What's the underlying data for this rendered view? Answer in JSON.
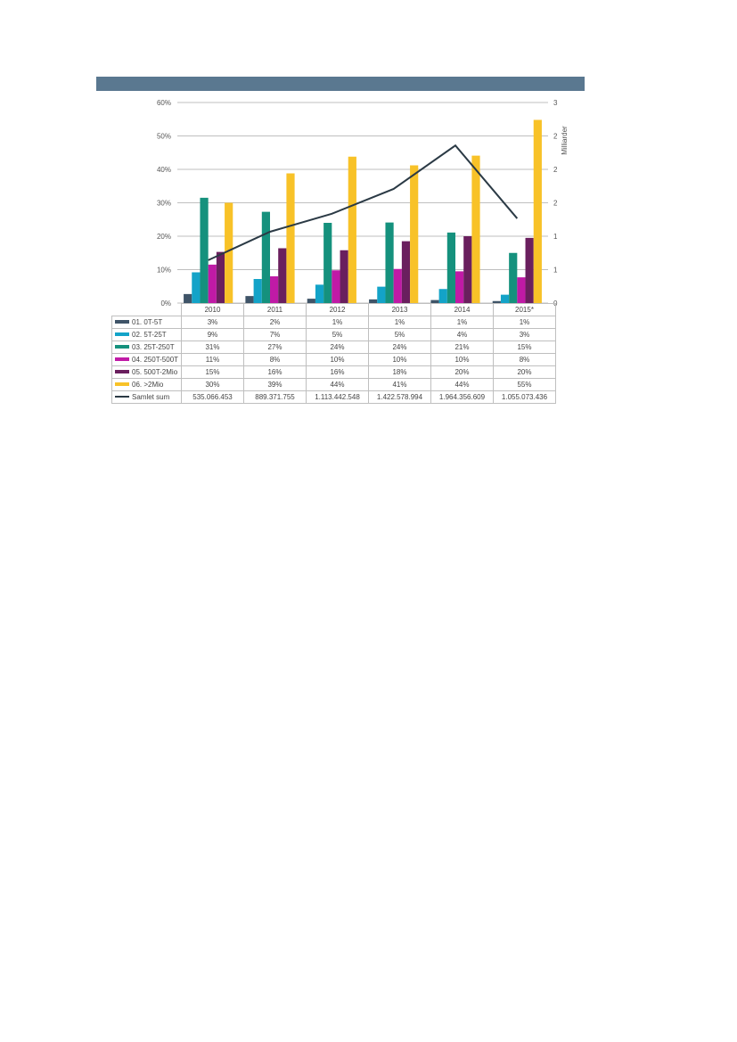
{
  "colors": {
    "header_bar": "#5a7890",
    "grid": "#bfbfbf",
    "axis_text": "#555555",
    "series": [
      "#3f5468",
      "#13a3c8",
      "#15917d",
      "#c01aa6",
      "#6a1f5e",
      "#f8c228"
    ],
    "line": "#2b3a45"
  },
  "chart_data": {
    "type": "bar",
    "categories": [
      "2010",
      "2011",
      "2012",
      "2013",
      "2014",
      "2015*"
    ],
    "series": [
      {
        "name": "01. 0T-5T",
        "labels": [
          "3%",
          "2%",
          "1%",
          "1%",
          "1%",
          "1%"
        ],
        "values": [
          2.7,
          2.1,
          1.3,
          1.1,
          0.9,
          0.6
        ]
      },
      {
        "name": "02. 5T-25T",
        "labels": [
          "9%",
          "7%",
          "5%",
          "5%",
          "4%",
          "3%"
        ],
        "values": [
          9.2,
          7.2,
          5.5,
          4.9,
          4.2,
          2.5
        ]
      },
      {
        "name": "03. 25T-250T",
        "labels": [
          "31%",
          "27%",
          "24%",
          "24%",
          "21%",
          "15%"
        ],
        "values": [
          31.5,
          27.3,
          24.0,
          24.1,
          21.1,
          15.0
        ]
      },
      {
        "name": "04. 250T-500T",
        "labels": [
          "11%",
          "8%",
          "10%",
          "10%",
          "10%",
          "8%"
        ],
        "values": [
          11.5,
          8.0,
          9.8,
          10.2,
          9.5,
          7.7
        ]
      },
      {
        "name": "05. 500T-2Mio",
        "labels": [
          "15%",
          "16%",
          "16%",
          "18%",
          "20%",
          "20%"
        ],
        "values": [
          15.3,
          16.4,
          15.8,
          18.5,
          20.0,
          19.5
        ]
      },
      {
        "name": "06. >2Mio",
        "labels": [
          "30%",
          "39%",
          "44%",
          "41%",
          "44%",
          "55%"
        ],
        "values": [
          30.0,
          38.8,
          43.8,
          41.2,
          44.1,
          54.8
        ]
      }
    ],
    "line_series": {
      "name": "Samlet sum",
      "labels": [
        "535.066.453",
        "889.371.755",
        "1.113.442.548",
        "1.422.578.994",
        "1.964.356.609",
        "1.055.073.436"
      ],
      "values": [
        0.535,
        0.889,
        1.113,
        1.423,
        1.964,
        1.055
      ]
    },
    "y_left": {
      "ticks": [
        "0%",
        "10%",
        "20%",
        "30%",
        "40%",
        "50%",
        "60%"
      ],
      "ylim": [
        0,
        60
      ]
    },
    "y_right": {
      "ticks": [
        "0",
        "1",
        "1",
        "2",
        "2",
        "2",
        "3"
      ],
      "ylim": [
        0,
        2.5
      ],
      "label": "Milliarder"
    },
    "grid": true
  }
}
